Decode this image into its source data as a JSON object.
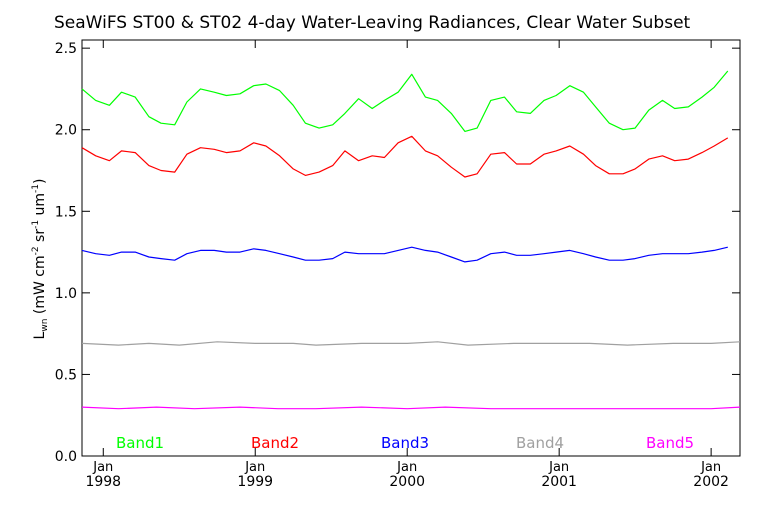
{
  "chart_data": {
    "type": "line",
    "title": "SeaWiFS ST00 & ST02 4-day Water-Leaving Radiances, Clear Water Subset",
    "ylabel_base": "L",
    "ylabel_sub": "wn",
    "ylabel_rest_a": " (mW cm",
    "ylabel_sup_a": "-2",
    "ylabel_rest_b": " sr",
    "ylabel_sup_b": "-1",
    "ylabel_rest_c": " um",
    "ylabel_sup_c": "-1",
    "ylabel_rest_d": ")",
    "ylim": [
      0.0,
      2.55
    ],
    "xlim": [
      1997.86,
      2002.19
    ],
    "yticks": [
      {
        "v": 0.0,
        "label": "0.0"
      },
      {
        "v": 0.5,
        "label": "0.5"
      },
      {
        "v": 1.0,
        "label": "1.0"
      },
      {
        "v": 1.5,
        "label": "1.5"
      },
      {
        "v": 2.0,
        "label": "2.0"
      },
      {
        "v": 2.5,
        "label": "2.5"
      }
    ],
    "xticks": [
      {
        "v": 1998.0,
        "month": "Jan",
        "year": "1998"
      },
      {
        "v": 1999.0,
        "month": "Jan",
        "year": "1999"
      },
      {
        "v": 2000.0,
        "month": "Jan",
        "year": "2000"
      },
      {
        "v": 2001.0,
        "month": "Jan",
        "year": "2001"
      },
      {
        "v": 2002.0,
        "month": "Jan",
        "year": "2002"
      }
    ],
    "series": [
      {
        "name": "Band1",
        "color": "#00ff00",
        "points": [
          [
            1997.86,
            2.25
          ],
          [
            1997.95,
            2.18
          ],
          [
            1998.04,
            2.15
          ],
          [
            1998.12,
            2.23
          ],
          [
            1998.21,
            2.2
          ],
          [
            1998.3,
            2.08
          ],
          [
            1998.38,
            2.04
          ],
          [
            1998.47,
            2.03
          ],
          [
            1998.55,
            2.17
          ],
          [
            1998.64,
            2.25
          ],
          [
            1998.73,
            2.23
          ],
          [
            1998.81,
            2.21
          ],
          [
            1998.9,
            2.22
          ],
          [
            1998.99,
            2.27
          ],
          [
            1999.07,
            2.28
          ],
          [
            1999.16,
            2.24
          ],
          [
            1999.25,
            2.15
          ],
          [
            1999.33,
            2.04
          ],
          [
            1999.42,
            2.01
          ],
          [
            1999.51,
            2.03
          ],
          [
            1999.59,
            2.1
          ],
          [
            1999.68,
            2.19
          ],
          [
            1999.77,
            2.13
          ],
          [
            1999.85,
            2.18
          ],
          [
            1999.94,
            2.23
          ],
          [
            2000.03,
            2.34
          ],
          [
            2000.12,
            2.2
          ],
          [
            2000.2,
            2.18
          ],
          [
            2000.29,
            2.1
          ],
          [
            2000.38,
            1.99
          ],
          [
            2000.46,
            2.01
          ],
          [
            2000.55,
            2.18
          ],
          [
            2000.64,
            2.2
          ],
          [
            2000.72,
            2.11
          ],
          [
            2000.81,
            2.1
          ],
          [
            2000.9,
            2.18
          ],
          [
            2000.98,
            2.21
          ],
          [
            2001.07,
            2.27
          ],
          [
            2001.16,
            2.23
          ],
          [
            2001.24,
            2.14
          ],
          [
            2001.33,
            2.04
          ],
          [
            2001.42,
            2.0
          ],
          [
            2001.5,
            2.01
          ],
          [
            2001.59,
            2.12
          ],
          [
            2001.68,
            2.18
          ],
          [
            2001.76,
            2.13
          ],
          [
            2001.85,
            2.14
          ],
          [
            2001.94,
            2.2
          ],
          [
            2002.02,
            2.26
          ],
          [
            2002.11,
            2.36
          ]
        ]
      },
      {
        "name": "Band2",
        "color": "#ff0000",
        "points": [
          [
            1997.86,
            1.89
          ],
          [
            1997.95,
            1.84
          ],
          [
            1998.04,
            1.81
          ],
          [
            1998.12,
            1.87
          ],
          [
            1998.21,
            1.86
          ],
          [
            1998.3,
            1.78
          ],
          [
            1998.38,
            1.75
          ],
          [
            1998.47,
            1.74
          ],
          [
            1998.55,
            1.85
          ],
          [
            1998.64,
            1.89
          ],
          [
            1998.73,
            1.88
          ],
          [
            1998.81,
            1.86
          ],
          [
            1998.9,
            1.87
          ],
          [
            1998.99,
            1.92
          ],
          [
            1999.07,
            1.9
          ],
          [
            1999.16,
            1.84
          ],
          [
            1999.25,
            1.76
          ],
          [
            1999.33,
            1.72
          ],
          [
            1999.42,
            1.74
          ],
          [
            1999.51,
            1.78
          ],
          [
            1999.59,
            1.87
          ],
          [
            1999.68,
            1.81
          ],
          [
            1999.77,
            1.84
          ],
          [
            1999.85,
            1.83
          ],
          [
            1999.94,
            1.92
          ],
          [
            2000.03,
            1.96
          ],
          [
            2000.12,
            1.87
          ],
          [
            2000.2,
            1.84
          ],
          [
            2000.29,
            1.77
          ],
          [
            2000.38,
            1.71
          ],
          [
            2000.46,
            1.73
          ],
          [
            2000.55,
            1.85
          ],
          [
            2000.64,
            1.86
          ],
          [
            2000.72,
            1.79
          ],
          [
            2000.81,
            1.79
          ],
          [
            2000.9,
            1.85
          ],
          [
            2000.98,
            1.87
          ],
          [
            2001.07,
            1.9
          ],
          [
            2001.16,
            1.85
          ],
          [
            2001.24,
            1.78
          ],
          [
            2001.33,
            1.73
          ],
          [
            2001.42,
            1.73
          ],
          [
            2001.5,
            1.76
          ],
          [
            2001.59,
            1.82
          ],
          [
            2001.68,
            1.84
          ],
          [
            2001.76,
            1.81
          ],
          [
            2001.85,
            1.82
          ],
          [
            2001.94,
            1.86
          ],
          [
            2002.02,
            1.9
          ],
          [
            2002.11,
            1.95
          ]
        ]
      },
      {
        "name": "Band3",
        "color": "#0000ff",
        "points": [
          [
            1997.86,
            1.26
          ],
          [
            1997.95,
            1.24
          ],
          [
            1998.04,
            1.23
          ],
          [
            1998.12,
            1.25
          ],
          [
            1998.21,
            1.25
          ],
          [
            1998.3,
            1.22
          ],
          [
            1998.38,
            1.21
          ],
          [
            1998.47,
            1.2
          ],
          [
            1998.55,
            1.24
          ],
          [
            1998.64,
            1.26
          ],
          [
            1998.73,
            1.26
          ],
          [
            1998.81,
            1.25
          ],
          [
            1998.9,
            1.25
          ],
          [
            1998.99,
            1.27
          ],
          [
            1999.07,
            1.26
          ],
          [
            1999.16,
            1.24
          ],
          [
            1999.25,
            1.22
          ],
          [
            1999.33,
            1.2
          ],
          [
            1999.42,
            1.2
          ],
          [
            1999.51,
            1.21
          ],
          [
            1999.59,
            1.25
          ],
          [
            1999.68,
            1.24
          ],
          [
            1999.77,
            1.24
          ],
          [
            1999.85,
            1.24
          ],
          [
            1999.94,
            1.26
          ],
          [
            2000.03,
            1.28
          ],
          [
            2000.12,
            1.26
          ],
          [
            2000.2,
            1.25
          ],
          [
            2000.29,
            1.22
          ],
          [
            2000.38,
            1.19
          ],
          [
            2000.46,
            1.2
          ],
          [
            2000.55,
            1.24
          ],
          [
            2000.64,
            1.25
          ],
          [
            2000.72,
            1.23
          ],
          [
            2000.81,
            1.23
          ],
          [
            2000.9,
            1.24
          ],
          [
            2000.98,
            1.25
          ],
          [
            2001.07,
            1.26
          ],
          [
            2001.16,
            1.24
          ],
          [
            2001.24,
            1.22
          ],
          [
            2001.33,
            1.2
          ],
          [
            2001.42,
            1.2
          ],
          [
            2001.5,
            1.21
          ],
          [
            2001.59,
            1.23
          ],
          [
            2001.68,
            1.24
          ],
          [
            2001.76,
            1.24
          ],
          [
            2001.85,
            1.24
          ],
          [
            2001.94,
            1.25
          ],
          [
            2002.02,
            1.26
          ],
          [
            2002.11,
            1.28
          ]
        ]
      },
      {
        "name": "Band4",
        "color": "#a0a0a0",
        "points": [
          [
            1997.86,
            0.69
          ],
          [
            1998.1,
            0.68
          ],
          [
            1998.3,
            0.69
          ],
          [
            1998.5,
            0.68
          ],
          [
            1998.75,
            0.7
          ],
          [
            1999.0,
            0.69
          ],
          [
            1999.25,
            0.69
          ],
          [
            1999.4,
            0.68
          ],
          [
            1999.7,
            0.69
          ],
          [
            2000.0,
            0.69
          ],
          [
            2000.2,
            0.7
          ],
          [
            2000.4,
            0.68
          ],
          [
            2000.7,
            0.69
          ],
          [
            2001.0,
            0.69
          ],
          [
            2001.2,
            0.69
          ],
          [
            2001.45,
            0.68
          ],
          [
            2001.75,
            0.69
          ],
          [
            2002.0,
            0.69
          ],
          [
            2002.19,
            0.7
          ]
        ]
      },
      {
        "name": "Band5",
        "color": "#ff00ff",
        "points": [
          [
            1997.86,
            0.3
          ],
          [
            1998.1,
            0.29
          ],
          [
            1998.35,
            0.3
          ],
          [
            1998.6,
            0.29
          ],
          [
            1998.9,
            0.3
          ],
          [
            1999.15,
            0.29
          ],
          [
            1999.4,
            0.29
          ],
          [
            1999.7,
            0.3
          ],
          [
            2000.0,
            0.29
          ],
          [
            2000.25,
            0.3
          ],
          [
            2000.55,
            0.29
          ],
          [
            2000.85,
            0.29
          ],
          [
            2001.15,
            0.29
          ],
          [
            2001.45,
            0.29
          ],
          [
            2001.75,
            0.29
          ],
          [
            2002.0,
            0.29
          ],
          [
            2002.19,
            0.3
          ]
        ]
      }
    ]
  }
}
